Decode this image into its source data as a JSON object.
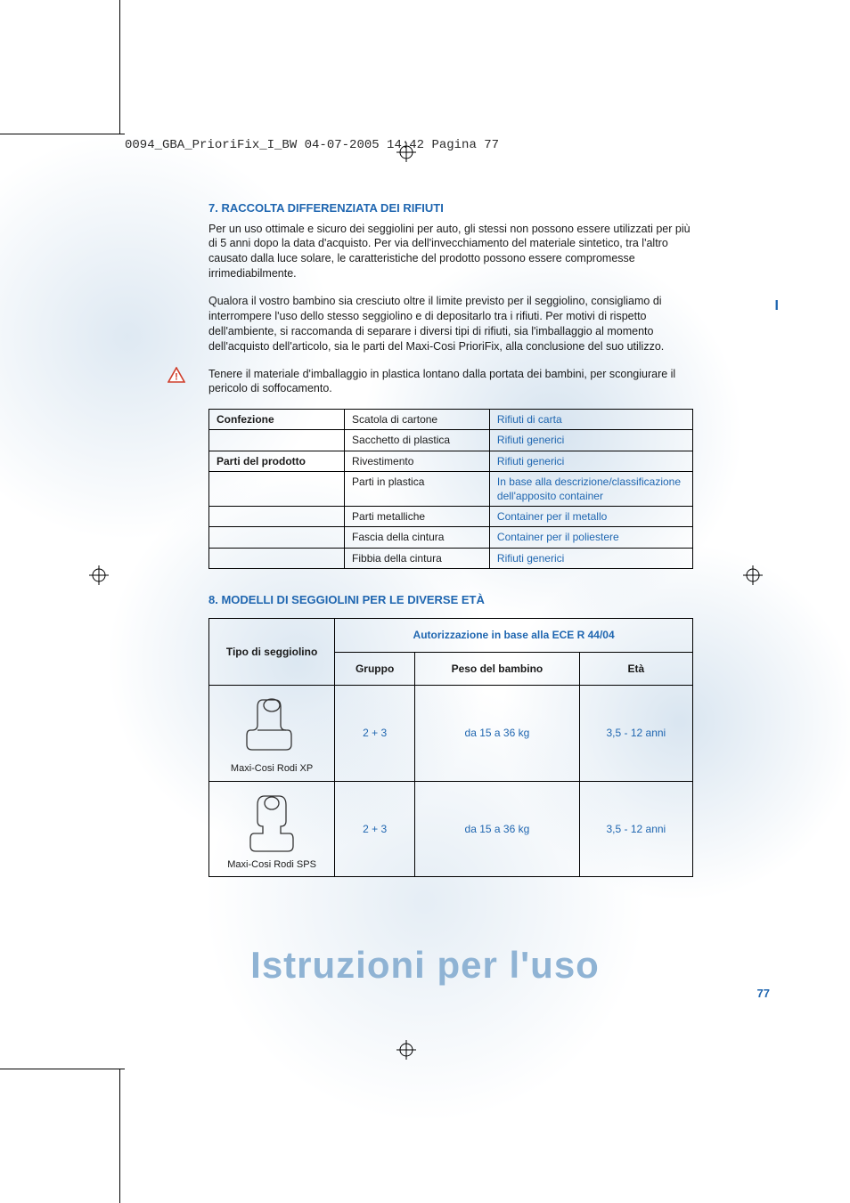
{
  "header_code": "0094_GBA_PrioriFix_I_BW  04-07-2005  14:42  Pagina 77",
  "side_flag": "I",
  "section7": {
    "title": "7. RACCOLTA DIFFERENZIATA DEI RIFIUTI",
    "para1": "Per un uso ottimale e sicuro dei seggiolini per auto, gli stessi non possono essere utilizzati per più di 5 anni dopo la data d'acquisto. Per via dell'invecchiamento del materiale sintetico, tra l'altro causato dalla luce solare, le caratteristiche del prodotto possono essere compromesse irrimediabilmente.",
    "para2": "Qualora il vostro bambino sia cresciuto oltre il limite previsto per il seggiolino, consigliamo di interrompere l'uso dello stesso seggiolino e di depositarlo tra i rifiuti. Per motivi di rispetto dell'ambiente, si raccomanda di separare i diversi tipi di rifiuti, sia l'imballaggio al momento dell'acquisto dell'articolo, sia le parti del Maxi-Cosi PrioriFix, alla conclusione del suo utilizzo.",
    "warning": "Tenere il materiale d'imballaggio in plastica lontano dalla portata dei bambini, per scongiurare il pericolo di soffocamento."
  },
  "waste_table": {
    "rows": [
      {
        "head": "Confezione",
        "mid": "Scatola di cartone",
        "right": "Rifiuti di carta"
      },
      {
        "head": "",
        "mid": "Sacchetto di plastica",
        "right": "Rifiuti generici"
      },
      {
        "head": "Parti del prodotto",
        "mid": "Rivestimento",
        "right": "Rifiuti generici"
      },
      {
        "head": "",
        "mid": "Parti in plastica",
        "right": "In base alla descrizione/classificazione dell'apposito container"
      },
      {
        "head": "",
        "mid": "Parti metalliche",
        "right": "Container per il metallo"
      },
      {
        "head": "",
        "mid": "Fascia della cintura",
        "right": "Container per il poliestere"
      },
      {
        "head": "",
        "mid": "Fibbia della cintura",
        "right": "Rifiuti generici"
      }
    ]
  },
  "section8": {
    "title": "8. MODELLI DI SEGGIOLINI PER LE DIVERSE ETÀ",
    "col_type": "Tipo di seggiolino",
    "col_auth": "Autorizzazione in base alla ECE R 44/04",
    "col_group": "Gruppo",
    "col_weight": "Peso del bambino",
    "col_age": "Età",
    "seats": [
      {
        "name": "Maxi-Cosi Rodi XP",
        "group": "2 + 3",
        "weight": "da 15 a 36 kg",
        "age": "3,5 - 12 anni"
      },
      {
        "name": "Maxi-Cosi Rodi SPS",
        "group": "2 + 3",
        "weight": "da 15 a 36 kg",
        "age": "3,5 - 12 anni"
      }
    ]
  },
  "footer_title": "Istruzioni per l'uso",
  "page_number": "77",
  "colors": {
    "accent": "#1f66b0",
    "footer": "#8fb3d4",
    "text": "#1a1a1a",
    "border": "#000000",
    "warning_fill": "#ffffff",
    "warning_stroke": "#cf3d2a"
  }
}
